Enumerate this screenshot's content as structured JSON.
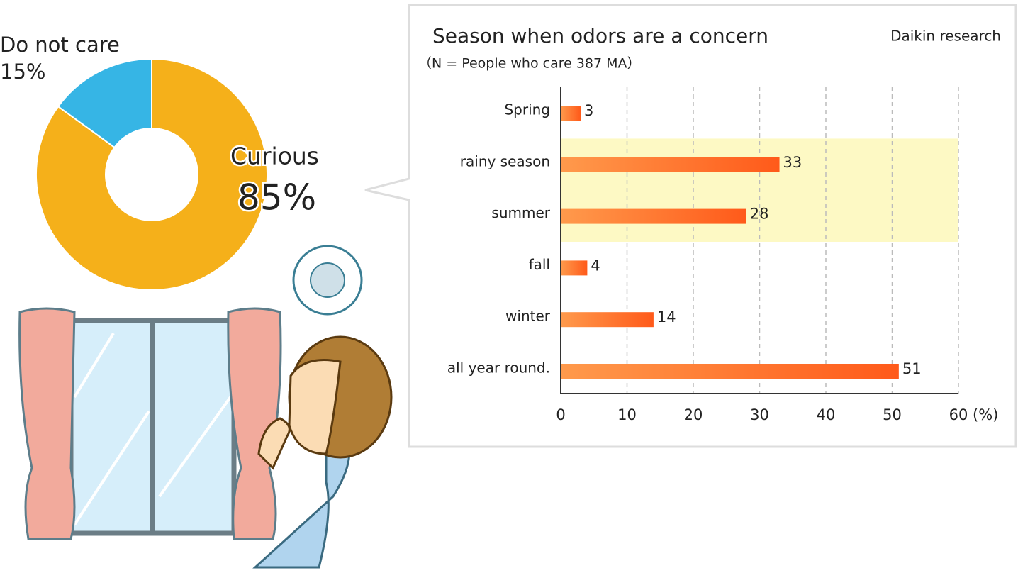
{
  "chart_data": [
    {
      "type": "donut",
      "categories": [
        "Curious",
        "Do not care"
      ],
      "values": [
        85,
        15
      ],
      "value_labels": [
        "85%",
        "15%"
      ],
      "colors": [
        "#f5b01a",
        "#36b5e5"
      ]
    },
    {
      "type": "hbar",
      "title": "Season when odors are a concern",
      "subtitle": "（N = People who care 387 MA）",
      "source": "Daikin research",
      "categories": [
        "Spring",
        "rainy season",
        "summer",
        "fall",
        "winter",
        "all year round."
      ],
      "values": [
        3,
        33,
        28,
        4,
        14,
        51
      ],
      "color": "#ff5a1a",
      "highlight_categories": [
        1,
        2
      ],
      "xlim": [
        0,
        60
      ],
      "xticks": [
        0,
        10,
        20,
        30,
        40,
        50,
        60
      ],
      "x_label": "(%)",
      "grid": true
    }
  ]
}
